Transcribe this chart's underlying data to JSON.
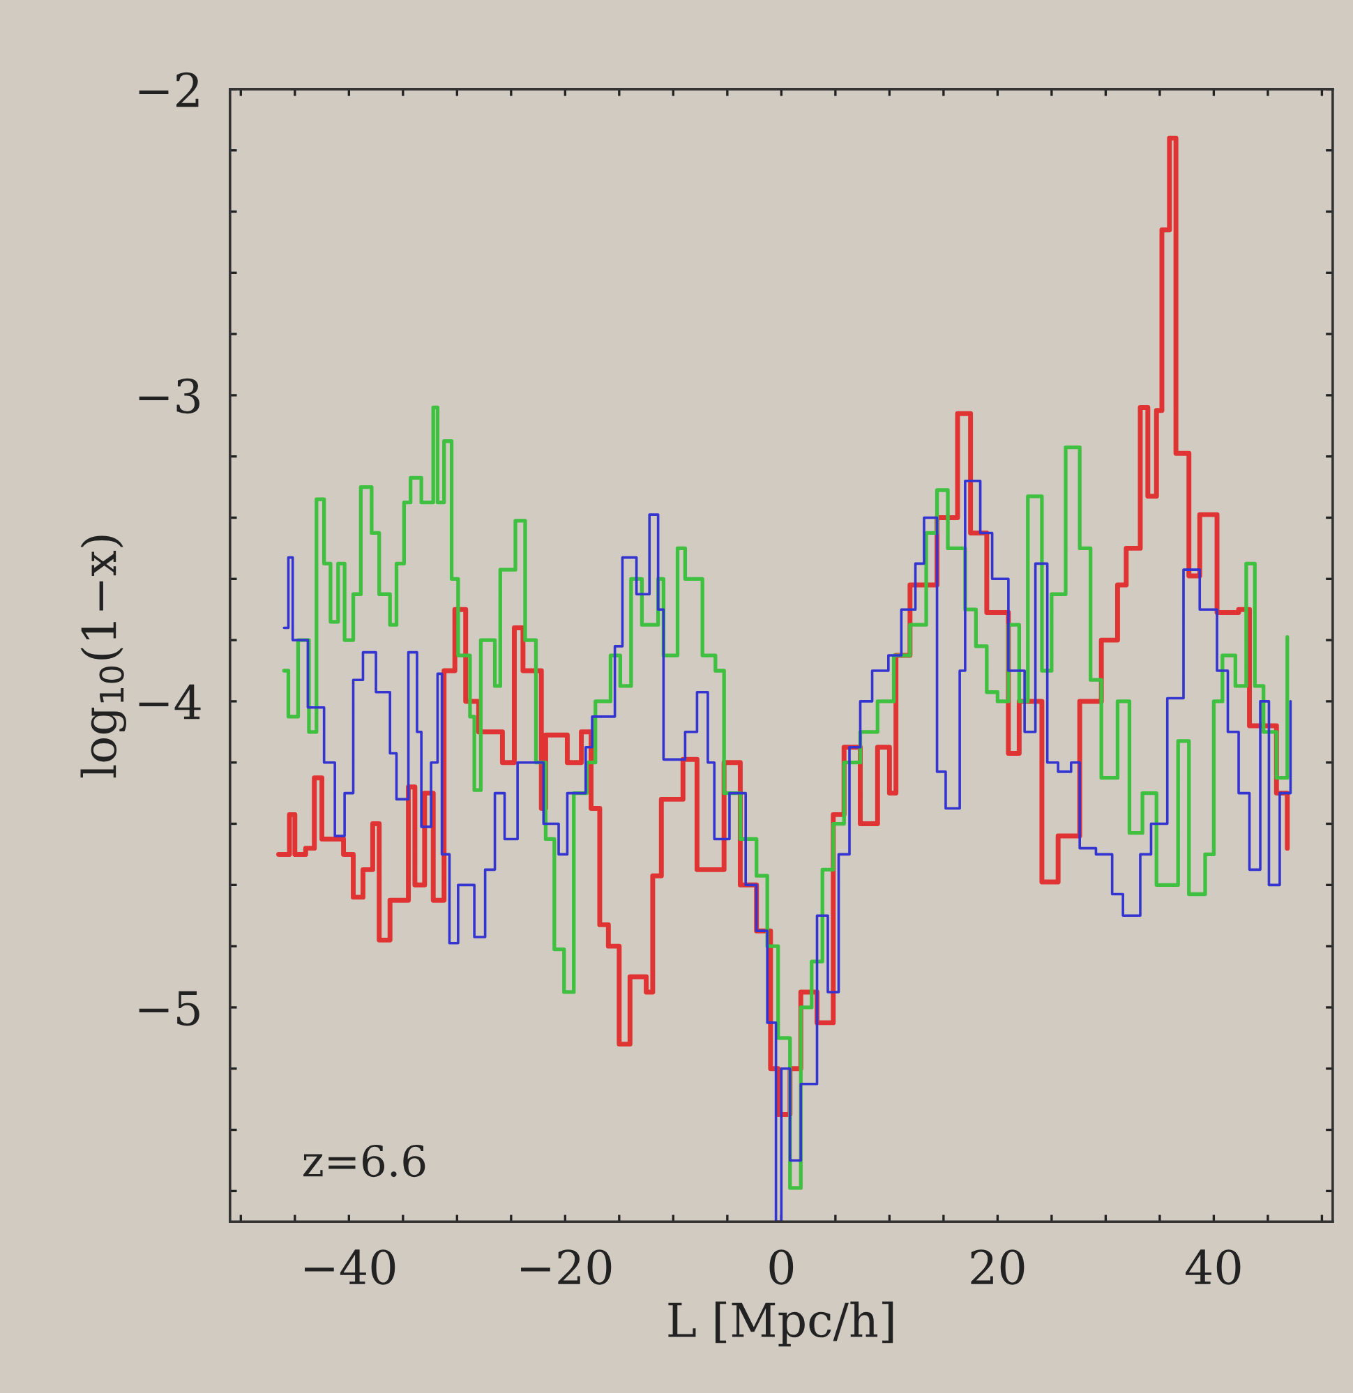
{
  "chart_data": {
    "type": "step",
    "xlabel": "L [Mpc/h]",
    "ylabel": "log$_{10}$(1−x)",
    "annotations": [
      "z=6.6"
    ],
    "xlim": [
      -51,
      51
    ],
    "ylim": [
      -5.7,
      -2
    ],
    "xticks": [
      {
        "value": -50,
        "label": null
      },
      {
        "value": -45,
        "label": null
      },
      -40,
      {
        "value": -35,
        "label": null
      },
      {
        "value": -30,
        "label": null
      },
      {
        "value": -25,
        "label": null
      },
      -20,
      {
        "value": -15,
        "label": null
      },
      {
        "value": -10,
        "label": null
      },
      {
        "value": -5,
        "label": null
      },
      0,
      {
        "value": 5,
        "label": null
      },
      {
        "value": 10,
        "label": null
      },
      {
        "value": 15,
        "label": null
      },
      20,
      {
        "value": 25,
        "label": null
      },
      {
        "value": 30,
        "label": null
      },
      {
        "value": 35,
        "label": null
      },
      40,
      {
        "value": 45,
        "label": null
      },
      {
        "value": 50,
        "label": null
      }
    ],
    "yticks": [
      {
        "value": -5.6,
        "label": null
      },
      {
        "value": -5.4,
        "label": null
      },
      {
        "value": -5.2,
        "label": null
      },
      -5,
      {
        "value": -4.8,
        "label": null
      },
      {
        "value": -4.6,
        "label": null
      },
      {
        "value": -4.4,
        "label": null
      },
      {
        "value": -4.2,
        "label": null
      },
      -4,
      {
        "value": -3.8,
        "label": null
      },
      {
        "value": -3.6,
        "label": null
      },
      {
        "value": -3.4,
        "label": null
      },
      {
        "value": -3.2,
        "label": null
      },
      -3,
      {
        "value": -2.8,
        "label": null
      },
      {
        "value": -2.6,
        "label": null
      },
      {
        "value": -2.4,
        "label": null
      },
      {
        "value": -2.2,
        "label": null
      },
      -2
    ],
    "marker": "none",
    "line_style": "solid",
    "series": [
      {
        "color": "#e03434",
        "x": [
          -46.5,
          -45.5,
          -45,
          -44,
          -43.2,
          -42.5,
          -40.5,
          -39.6,
          -38.7,
          -37.8,
          -37.2,
          -36.2,
          -34.5,
          -33.9,
          -33,
          -32.2,
          -31.2,
          -30.2,
          -29.2,
          -28,
          -25.8,
          -24.7,
          -23.9,
          -22.2,
          -21.8,
          -19.8,
          -18.5,
          -17.6,
          -16.8,
          -16,
          -15,
          -14,
          -12.5,
          -11.9,
          -11.1,
          -9.1,
          -7.8,
          -5.3,
          -3.8,
          -2.3,
          -1,
          -0.3,
          0.8,
          1.8,
          3.3,
          4.8,
          5.8,
          7.3,
          8.9,
          10,
          10.6,
          11.9,
          14.4,
          16.3,
          17.5,
          19,
          21,
          22,
          24.1,
          25.6,
          27.6,
          29.6,
          31.1,
          31.9,
          33.2,
          33.9,
          34.7,
          35.2,
          35.9,
          36.5,
          37.7,
          38.7,
          40.3,
          42.3,
          43.3,
          45.8,
          46.8
        ],
        "values": [
          -4.5,
          -4.37,
          -4.5,
          -4.48,
          -4.25,
          -4.45,
          -4.5,
          -4.64,
          -4.55,
          -4.4,
          -4.78,
          -4.65,
          -4.28,
          -4.6,
          -4.3,
          -4.65,
          -3.9,
          -3.7,
          -4.0,
          -4.1,
          -4.2,
          -3.76,
          -3.9,
          -4.35,
          -4.11,
          -4.2,
          -4.1,
          -4.35,
          -4.73,
          -4.8,
          -5.12,
          -4.9,
          -4.95,
          -4.57,
          -4.32,
          -4.19,
          -4.55,
          -4.2,
          -4.6,
          -4.75,
          -5.2,
          -5.35,
          -5.2,
          -4.95,
          -5.05,
          -4.37,
          -4.15,
          -4.4,
          -4.15,
          -4.3,
          -3.85,
          -3.62,
          -3.4,
          -3.06,
          -3.45,
          -3.71,
          -4.17,
          -4.0,
          -4.59,
          -4.44,
          -4.0,
          -3.8,
          -3.62,
          -3.5,
          -3.04,
          -3.33,
          -3.05,
          -2.46,
          -2.16,
          -3.19,
          -3.59,
          -3.39,
          -3.71,
          -3.7,
          -4.08,
          -4.3,
          -4.48
        ]
      },
      {
        "color": "#40c040",
        "x": [
          -46,
          -45.6,
          -44.7,
          -43.7,
          -43,
          -42.3,
          -41.7,
          -41,
          -40.4,
          -39.6,
          -38.9,
          -37.9,
          -37.2,
          -36.2,
          -35.6,
          -34.9,
          -34.3,
          -33.3,
          -32.2,
          -31.8,
          -31.2,
          -30.5,
          -29.9,
          -28.8,
          -28.4,
          -27.8,
          -26.5,
          -26,
          -24.6,
          -23.7,
          -22.7,
          -21.8,
          -21,
          -20.1,
          -19.2,
          -18,
          -17.2,
          -15.8,
          -14.9,
          -13.9,
          -12.9,
          -11.4,
          -10.9,
          -9.6,
          -8.9,
          -7.3,
          -6.1,
          -5.3,
          -3.8,
          -2.3,
          -1.3,
          -0.3,
          0.8,
          1.8,
          2.8,
          3.8,
          4.8,
          5.8,
          7.3,
          8.9,
          10.4,
          11.9,
          13.4,
          14.4,
          15.4,
          17,
          18,
          19,
          20,
          21,
          22,
          22.8,
          24.1,
          25,
          26.3,
          27.6,
          28.6,
          29.6,
          31.1,
          32.2,
          33.4,
          34.7,
          36.7,
          37.7,
          39.2,
          40,
          40.8,
          42,
          43,
          43.8,
          44.6,
          45.8,
          46.8
        ],
        "values": [
          -3.9,
          -4.05,
          -3.8,
          -4.1,
          -3.34,
          -3.55,
          -3.74,
          -3.55,
          -3.8,
          -3.65,
          -3.3,
          -3.45,
          -3.65,
          -3.75,
          -3.55,
          -3.35,
          -3.27,
          -3.35,
          -3.04,
          -3.35,
          -3.15,
          -3.6,
          -3.85,
          -4.05,
          -4.29,
          -3.8,
          -3.95,
          -3.57,
          -3.41,
          -3.8,
          -4.2,
          -4.45,
          -4.81,
          -4.95,
          -4.3,
          -4.2,
          -4.0,
          -3.85,
          -3.95,
          -3.6,
          -3.75,
          -3.6,
          -3.85,
          -3.5,
          -3.6,
          -3.85,
          -3.9,
          -4.3,
          -4.45,
          -4.57,
          -4.8,
          -5.1,
          -5.59,
          -5.0,
          -4.85,
          -4.55,
          -4.4,
          -4.2,
          -4.1,
          -4.0,
          -3.85,
          -3.75,
          -3.45,
          -3.31,
          -3.5,
          -3.7,
          -3.82,
          -3.97,
          -4.0,
          -3.75,
          -4.0,
          -3.33,
          -3.9,
          -3.65,
          -3.17,
          -3.5,
          -3.93,
          -4.25,
          -4.0,
          -4.43,
          -4.3,
          -4.6,
          -4.13,
          -4.63,
          -4.5,
          -4.0,
          -3.85,
          -3.95,
          -3.55,
          -3.95,
          -4.1,
          -4.25,
          -3.79
        ]
      },
      {
        "color": "#3434d0",
        "x": [
          -46,
          -45.6,
          -45.2,
          -43.8,
          -42.3,
          -41.3,
          -40.4,
          -39.6,
          -38.7,
          -37.5,
          -36.2,
          -35.6,
          -34.5,
          -33.7,
          -33.3,
          -32.4,
          -31.8,
          -31.4,
          -30.7,
          -29.9,
          -28.4,
          -27.4,
          -26.5,
          -25.6,
          -24.4,
          -22,
          -20.6,
          -19.8,
          -18.1,
          -17.5,
          -15.4,
          -14.7,
          -13.4,
          -12.2,
          -11.4,
          -10.9,
          -8.9,
          -7.8,
          -6.8,
          -6.2,
          -4.8,
          -3.3,
          -2.3,
          -1.3,
          -0.5,
          0,
          0.8,
          1.8,
          3.3,
          4.3,
          5.3,
          6.3,
          7.3,
          8.4,
          9.9,
          11.1,
          12.4,
          13.2,
          14.4,
          15.2,
          16.5,
          17,
          18.4,
          19.5,
          21,
          22.5,
          23.5,
          24.6,
          25.6,
          26.8,
          27.6,
          29.1,
          30.6,
          31.6,
          33.2,
          34.2,
          35.7,
          37.2,
          38.7,
          40.3,
          41.3,
          42.3,
          43.3,
          44.3,
          45.1,
          46.1,
          47.1
        ],
        "values": [
          -3.76,
          -3.53,
          -3.8,
          -4.02,
          -4.2,
          -4.44,
          -4.3,
          -3.93,
          -3.84,
          -3.97,
          -4.17,
          -4.32,
          -3.84,
          -4.1,
          -4.41,
          -4.2,
          -3.91,
          -4.5,
          -4.79,
          -4.6,
          -4.77,
          -4.55,
          -4.3,
          -4.45,
          -4.2,
          -4.4,
          -4.5,
          -4.3,
          -4.15,
          -4.05,
          -3.82,
          -3.53,
          -3.65,
          -3.39,
          -3.7,
          -4.19,
          -4.1,
          -3.97,
          -4.2,
          -4.45,
          -4.3,
          -4.6,
          -4.75,
          -5.05,
          -5.7,
          -5.2,
          -5.5,
          -5.25,
          -4.7,
          -4.95,
          -4.5,
          -4.15,
          -4.0,
          -3.9,
          -3.85,
          -3.7,
          -3.55,
          -3.4,
          -4.23,
          -4.35,
          -3.9,
          -3.28,
          -3.45,
          -3.6,
          -3.9,
          -4.1,
          -3.55,
          -4.2,
          -4.23,
          -4.2,
          -4.48,
          -4.5,
          -4.63,
          -4.7,
          -4.5,
          -4.4,
          -3.99,
          -3.57,
          -3.7,
          -3.9,
          -4.1,
          -4.3,
          -4.55,
          -4.0,
          -4.6,
          -4.3,
          -4.0
        ]
      }
    ]
  }
}
